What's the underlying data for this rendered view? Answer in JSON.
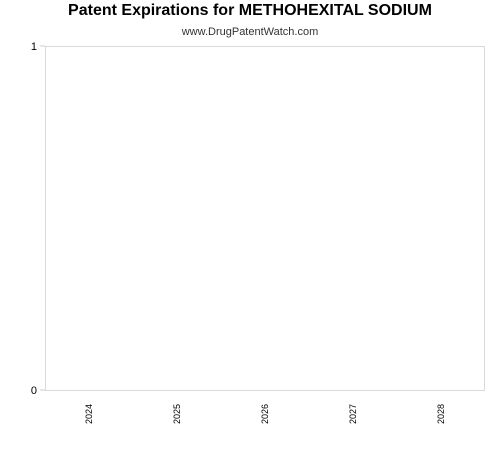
{
  "chart_data": {
    "type": "bar",
    "title": "Patent Expirations for METHOHEXITAL SODIUM",
    "subtitle": "www.DrugPatentWatch.com",
    "categories": [
      "2024",
      "2025",
      "2026",
      "2027",
      "2028"
    ],
    "values": [
      0,
      0,
      0,
      0,
      0
    ],
    "y_ticks": [
      "0",
      "1"
    ],
    "ylim": [
      0,
      1
    ],
    "xlabel": "",
    "ylabel": "",
    "grid": false,
    "colors": {
      "axis": "#cccccc",
      "text": "#000000",
      "bar": "#4a86c8"
    }
  }
}
